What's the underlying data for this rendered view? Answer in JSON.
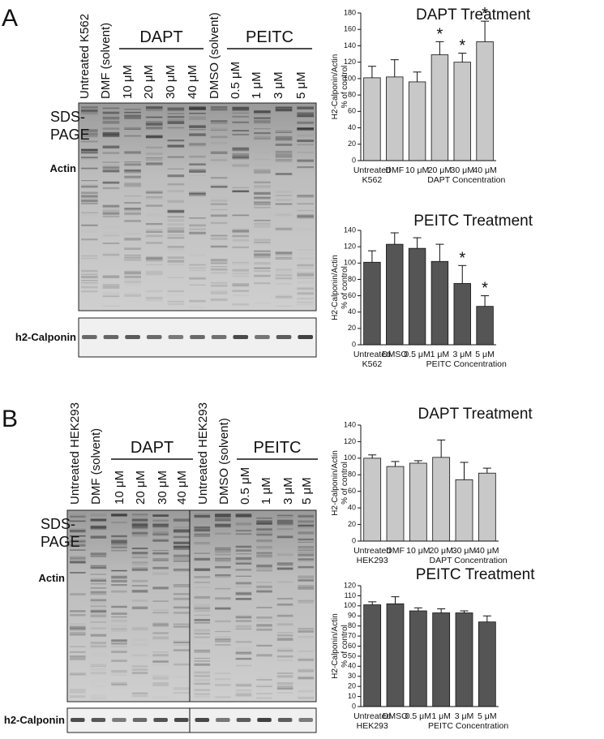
{
  "panels": [
    {
      "letter": "A",
      "lanes": [
        "Untreated K562",
        "DMF (solvent)",
        "10 μM",
        "20 μM",
        "30 μM",
        "40 μM",
        "DMSO (solvent)",
        "0.5 μM",
        "1 μM",
        "3 μM",
        "5 μM"
      ],
      "groups": [
        "DAPT",
        "PEITC"
      ],
      "gel_label": "SDS-\nPAGE",
      "actin": "Actin",
      "calponin": "h2-Calponin"
    },
    {
      "letter": "B",
      "lanes": [
        "Untreated HEK293",
        "DMF (solvent)",
        "10 μM",
        "20 μM",
        "30 μM",
        "40 μM",
        "Untreated HEK293",
        "DMSO (solvent)",
        "0.5 μM",
        "1 μM",
        "3 μM",
        "5 μM"
      ],
      "groups": [
        "DAPT",
        "PEITC"
      ],
      "gel_label": "SDS-\nPAGE",
      "actin": "Actin",
      "calponin": "h2-Calponin"
    }
  ],
  "chart_data": [
    {
      "type": "bar",
      "title": "DAPT Treatment",
      "ylabel": "H2-Calponin/Actin\n% of control",
      "xlabel": "DAPT Concentration",
      "categories": [
        "Untreated\nK562",
        "DMF",
        "10 μM",
        "20 μM",
        "30 μM",
        "40 μM"
      ],
      "values": [
        101,
        102,
        96,
        129,
        120,
        145
      ],
      "errors": [
        14,
        21,
        12,
        16,
        11,
        25
      ],
      "significant": [
        false,
        false,
        false,
        true,
        true,
        true
      ],
      "marker": "*",
      "color": "#c8c8c8",
      "ylim": [
        0,
        180
      ],
      "yticks": [
        0,
        20,
        40,
        60,
        80,
        100,
        120,
        140,
        160,
        180
      ]
    },
    {
      "type": "bar",
      "title": "PEITC Treatment",
      "ylabel": "H2-Calponin/Actin\n% of control",
      "xlabel": "PEITC Concentration",
      "categories": [
        "Untreated\nK562",
        "DMSO",
        "0.5 μM",
        "1 μM",
        "3 μM",
        "5 μM"
      ],
      "values": [
        101,
        123,
        118,
        102,
        75,
        47
      ],
      "errors": [
        14,
        14,
        13,
        21,
        22,
        13
      ],
      "significant": [
        false,
        false,
        false,
        false,
        true,
        true
      ],
      "marker": "*",
      "color": "#555555",
      "ylim": [
        0,
        140
      ],
      "yticks": [
        0,
        20,
        40,
        60,
        80,
        100,
        120,
        140
      ]
    },
    {
      "type": "bar",
      "title": "DAPT Treatment",
      "ylabel": "H2-Calponin/Actin\n% of control",
      "xlabel": "DAPT Concentration",
      "categories": [
        "Untreated\nHEK293",
        "DMF",
        "10 μM",
        "20 μM",
        "30 μM",
        "40 μM"
      ],
      "values": [
        100,
        90,
        94,
        101,
        74,
        82
      ],
      "errors": [
        4,
        6,
        3,
        21,
        21,
        6
      ],
      "color": "#c8c8c8",
      "ylim": [
        0,
        140
      ],
      "yticks": [
        0,
        20,
        40,
        60,
        80,
        100,
        120,
        140
      ]
    },
    {
      "type": "bar",
      "title": "PEITC Treatment",
      "ylabel": "H2-Calponin/Actin\n% of control",
      "xlabel": "PEITC Concentration",
      "categories": [
        "Untreated\nHEK293",
        "DMSO",
        "0.5 μM",
        "1 μM",
        "3 μM",
        "5 μM"
      ],
      "values": [
        101,
        102,
        95,
        93,
        93,
        84
      ],
      "errors": [
        3,
        7,
        3,
        4,
        2,
        6
      ],
      "color": "#555555",
      "ylim": [
        0,
        120
      ],
      "yticks": [
        0,
        10,
        20,
        30,
        40,
        50,
        60,
        70,
        80,
        90,
        100,
        110,
        120
      ]
    }
  ]
}
